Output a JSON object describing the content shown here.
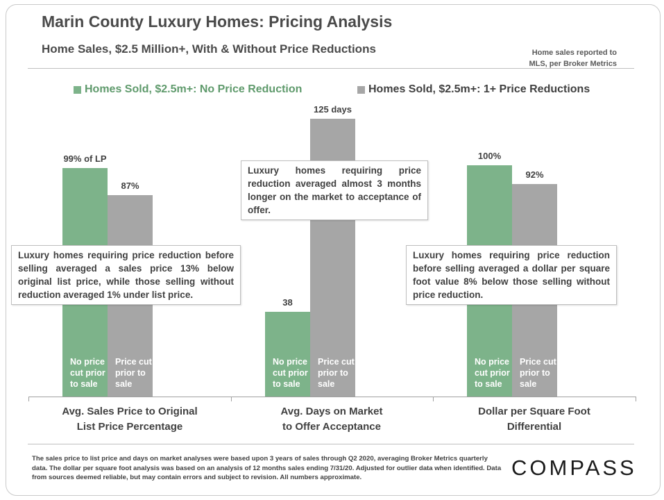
{
  "header": {
    "title": "Marin County Luxury Homes: Pricing Analysis",
    "subtitle": "Home Sales, $2.5 Million+, With & Without Price Reductions",
    "source_line1": "Home sales reported to",
    "source_line2": "MLS, per Broker Metrics"
  },
  "colors": {
    "green": "#7db38a",
    "gray": "#a6a6a6",
    "legend_green": "#5f9a6c",
    "legend_gray": "#404040"
  },
  "chart_data": {
    "type": "bar",
    "series": [
      {
        "name": "Homes Sold, $2.5m+: No Price Reduction"
      },
      {
        "name": "Homes Sold, $2.5m+: 1+ Price Reductions"
      }
    ],
    "groups": [
      {
        "category": "Avg. Sales Price to Original List Price Percentage",
        "category_line1": "Avg. Sales Price to Original",
        "category_line2": "List Price Percentage",
        "unit": "% of list price",
        "ymax": 125,
        "bars": [
          {
            "value": 99,
            "label": "99% of LP",
            "inner": [
              "No price",
              "cut prior",
              "to sale"
            ]
          },
          {
            "value": 87,
            "label": "87%",
            "inner": [
              "Price cut",
              "prior to",
              "sale"
            ]
          }
        ]
      },
      {
        "category": "Avg. Days on Market to Offer Acceptance",
        "category_line1": "Avg. Days on Market",
        "category_line2": "to Offer Acceptance",
        "unit": "days",
        "ymax": 130,
        "bars": [
          {
            "value": 38,
            "label": "38",
            "inner": [
              "No price",
              "cut prior",
              "to sale"
            ]
          },
          {
            "value": 125,
            "label": "125 days",
            "inner": [
              "Price cut",
              "prior to",
              "sale"
            ]
          }
        ]
      },
      {
        "category": "Dollar per Square Foot Differential",
        "category_line1": "Dollar per Square Foot",
        "category_line2": "Differential",
        "unit": "% relative",
        "ymax": 125,
        "bars": [
          {
            "value": 100,
            "label": "100%",
            "inner": [
              "No price",
              "cut prior",
              "to sale"
            ]
          },
          {
            "value": 92,
            "label": "92%",
            "inner": [
              "Price cut",
              "prior to",
              "sale"
            ]
          }
        ]
      }
    ]
  },
  "callouts": {
    "price": "Luxury homes requiring price reduction before selling averaged a sales price 13% below original list price, while those selling without reduction averaged 1% under list price.",
    "days": "Luxury homes requiring price reduction averaged almost 3 months longer on the market to acceptance of offer.",
    "ppsf": "Luxury homes requiring price reduction before selling averaged a dollar per square foot value 8% below those selling without price reduction."
  },
  "footer": {
    "note": "The sales price to list price and days on market analyses were based upon 3 years of sales through Q2 2020, averaging Broker Metrics quarterly data. The dollar per square foot analysis was based on an analysis of 12 months sales ending 7/31/20. Adjusted for outlier data when identified. Data from sources deemed reliable, but may contain errors and subject to revision. All numbers approximate.",
    "brand": "COMPASS"
  }
}
